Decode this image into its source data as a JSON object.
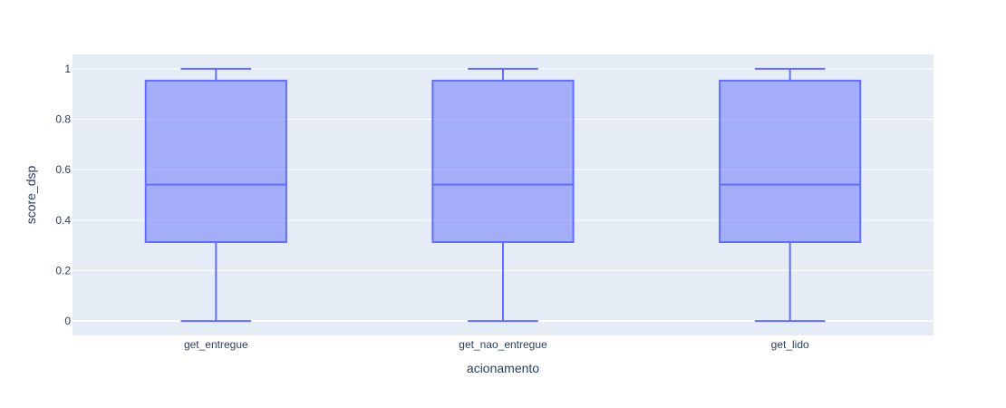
{
  "chart_data": {
    "type": "box",
    "title": "",
    "xlabel": "acionamento",
    "ylabel": "score_dsp",
    "ylim": [
      -0.057,
      1.057
    ],
    "yticks": [
      0,
      0.2,
      0.4,
      0.6,
      0.8,
      1
    ],
    "ytick_labels": [
      "0",
      "0.2",
      "0.4",
      "0.6",
      "0.8",
      "1"
    ],
    "grid": true,
    "legend": "none",
    "categories": [
      "get_entregue",
      "get_nao_entregue",
      "get_lido"
    ],
    "boxes": [
      {
        "category": "get_entregue",
        "min": 0,
        "q1": 0.313,
        "median": 0.541,
        "q3": 0.953,
        "max": 1
      },
      {
        "category": "get_nao_entregue",
        "min": 0,
        "q1": 0.313,
        "median": 0.541,
        "q3": 0.953,
        "max": 1
      },
      {
        "category": "get_lido",
        "min": 0,
        "q1": 0.313,
        "median": 0.541,
        "q3": 0.953,
        "max": 1
      }
    ],
    "colors": {
      "plot_background": "#E5ECF6",
      "grid": "#ffffff",
      "box_line": "#636EFA",
      "box_fill": "#636EFA",
      "text": "#2a3f5f"
    }
  }
}
